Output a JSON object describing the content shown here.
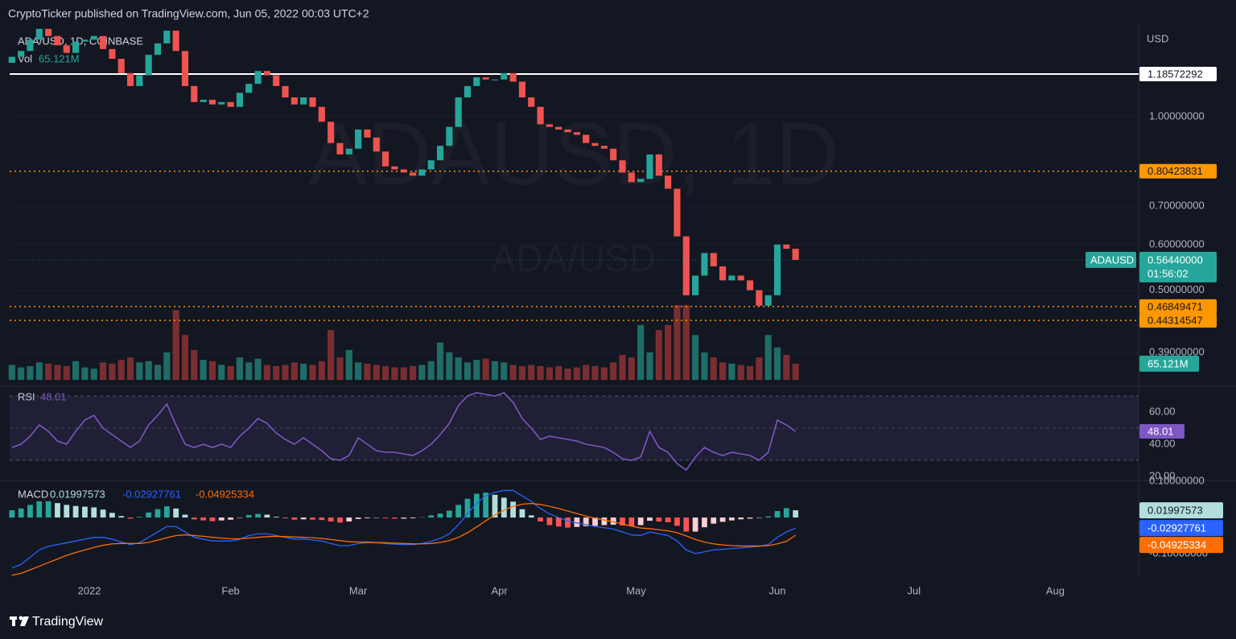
{
  "header": {
    "text": "CryptoTicker published on TradingView.com, Jun 05, 2022 00:03 UTC+2"
  },
  "footer": {
    "brand": "TradingView"
  },
  "chart_data": [
    {
      "type": "candlestick",
      "title": "ADA/USD, 1D, COINBASE",
      "watermark": "ADAUSD, 1D",
      "watermark2": "ADA/USD",
      "symbol": "ADAUSD",
      "unit": "USD",
      "log": true,
      "grid": true,
      "up_color": "#26a69a",
      "down_color": "#ef5350",
      "xlim": [
        -0.5,
        247.3
      ],
      "ylim": [
        0.3495,
        1.424
      ],
      "yticks": [
        {
          "value": 1,
          "label": "1.00000000"
        },
        {
          "value": 0.7,
          "label": "0.70000000"
        },
        {
          "value": 0.6,
          "label": "0.60000000"
        },
        {
          "value": 0.5,
          "label": "0.50000000"
        },
        {
          "value": 0.39,
          "label": "0.39000000"
        }
      ],
      "x": [
        0,
        2,
        4,
        6,
        8,
        10,
        12,
        14,
        16,
        18,
        20,
        22,
        24,
        26,
        28,
        30,
        32,
        34,
        36,
        38,
        40,
        42,
        44,
        46,
        48,
        50,
        52,
        54,
        56,
        58,
        60,
        62,
        64,
        66,
        68,
        70,
        72,
        74,
        76,
        78,
        80,
        82,
        84,
        86,
        88,
        90,
        92,
        94,
        96,
        98,
        100,
        102,
        104,
        106,
        108,
        110,
        112,
        114,
        116,
        118,
        120,
        122,
        124,
        126,
        128,
        130,
        132,
        134,
        136,
        138,
        140,
        142,
        144,
        146,
        148,
        150,
        152,
        154,
        156,
        158,
        160,
        162,
        164,
        166,
        168,
        170,
        172
      ],
      "open": [
        1.24,
        1.27,
        1.3,
        1.36,
        1.42,
        1.38,
        1.33,
        1.29,
        1.35,
        1.36,
        1.38,
        1.31,
        1.26,
        1.19,
        1.13,
        1.18,
        1.28,
        1.34,
        1.41,
        1.3,
        1.13,
        1.06,
        1.07,
        1.05,
        1.06,
        1.04,
        1.1,
        1.14,
        1.2,
        1.18,
        1.13,
        1.08,
        1.05,
        1.08,
        1.04,
        0.98,
        0.9,
        0.86,
        0.88,
        0.95,
        0.92,
        0.87,
        0.82,
        0.81,
        0.8,
        0.79,
        0.81,
        0.84,
        0.89,
        0.96,
        1.08,
        1.13,
        1.17,
        1.16,
        1.16,
        1.19,
        1.15,
        1.08,
        1.04,
        0.97,
        0.96,
        0.95,
        0.94,
        0.93,
        0.9,
        0.89,
        0.88,
        0.84,
        0.8,
        0.77,
        0.78,
        0.86,
        0.79,
        0.75,
        0.62,
        0.49,
        0.53,
        0.58,
        0.55,
        0.52,
        0.53,
        0.52,
        0.5,
        0.47,
        0.49,
        0.6,
        0.59
      ],
      "close": [
        1.27,
        1.3,
        1.36,
        1.42,
        1.38,
        1.33,
        1.29,
        1.35,
        1.36,
        1.38,
        1.31,
        1.26,
        1.19,
        1.13,
        1.18,
        1.28,
        1.34,
        1.41,
        1.3,
        1.13,
        1.06,
        1.07,
        1.05,
        1.06,
        1.04,
        1.1,
        1.14,
        1.2,
        1.18,
        1.13,
        1.08,
        1.05,
        1.08,
        1.04,
        0.98,
        0.9,
        0.86,
        0.88,
        0.95,
        0.92,
        0.87,
        0.82,
        0.81,
        0.8,
        0.79,
        0.81,
        0.84,
        0.89,
        0.96,
        1.08,
        1.13,
        1.17,
        1.16,
        1.16,
        1.19,
        1.15,
        1.08,
        1.04,
        0.97,
        0.96,
        0.95,
        0.94,
        0.93,
        0.9,
        0.89,
        0.88,
        0.84,
        0.8,
        0.77,
        0.78,
        0.86,
        0.79,
        0.75,
        0.62,
        0.49,
        0.53,
        0.58,
        0.55,
        0.52,
        0.53,
        0.52,
        0.5,
        0.47,
        0.49,
        0.6,
        0.59,
        0.5644
      ],
      "last_label": "0.56440000",
      "countdown": "01:56:02",
      "levels": [
        {
          "value": 1.18572292,
          "color": "#ffffff",
          "dash": false
        },
        {
          "value": 0.80423831,
          "color": "#ff9800",
          "dash": true
        },
        {
          "value": 0.46849471,
          "color": "#ff9800",
          "dash": true
        },
        {
          "value": 0.44314547,
          "color": "#ff9800",
          "dash": true
        }
      ],
      "volume": {
        "name": "Vol",
        "ylim": [
          0,
          420
        ],
        "up_color": "#1f6d66",
        "down_color": "#7a2e31",
        "value_label": "65.121M",
        "values": [
          60,
          50,
          55,
          70,
          65,
          60,
          55,
          75,
          50,
          45,
          70,
          65,
          80,
          90,
          70,
          75,
          60,
          110,
          280,
          180,
          120,
          80,
          75,
          60,
          55,
          90,
          70,
          85,
          60,
          55,
          60,
          70,
          65,
          60,
          75,
          200,
          90,
          120,
          70,
          65,
          60,
          55,
          50,
          50,
          55,
          60,
          75,
          150,
          110,
          90,
          70,
          80,
          85,
          75,
          70,
          60,
          55,
          60,
          55,
          50,
          55,
          45,
          50,
          60,
          55,
          50,
          70,
          100,
          90,
          220,
          110,
          200,
          220,
          300,
          300,
          180,
          110,
          90,
          70,
          65,
          60,
          55,
          90,
          180,
          130,
          100,
          65.121
        ]
      }
    },
    {
      "type": "line",
      "title": "RSI",
      "xlim": [
        -0.5,
        247.3
      ],
      "ylim": [
        17.5,
        72.5
      ],
      "band": [
        30,
        70
      ],
      "midline": 50,
      "yticks": [
        {
          "value": 60,
          "label": "60.00"
        },
        {
          "value": 40,
          "label": "40.00"
        },
        {
          "value": 20,
          "label": "20.00"
        }
      ],
      "x": [
        0,
        2,
        4,
        6,
        8,
        10,
        12,
        14,
        16,
        18,
        20,
        22,
        24,
        26,
        28,
        30,
        32,
        34,
        36,
        38,
        40,
        42,
        44,
        46,
        48,
        50,
        52,
        54,
        56,
        58,
        60,
        62,
        64,
        66,
        68,
        70,
        72,
        74,
        76,
        78,
        80,
        82,
        84,
        86,
        88,
        90,
        92,
        94,
        96,
        98,
        100,
        102,
        104,
        106,
        108,
        110,
        112,
        114,
        116,
        118,
        120,
        122,
        124,
        126,
        128,
        130,
        132,
        134,
        136,
        138,
        140,
        142,
        144,
        146,
        148,
        150,
        152,
        154,
        156,
        158,
        160,
        162,
        164,
        166,
        168,
        170,
        172
      ],
      "series": [
        {
          "color": "#7e57c2",
          "values": [
            38,
            40,
            45,
            52,
            48,
            42,
            40,
            48,
            55,
            58,
            50,
            46,
            42,
            38,
            42,
            52,
            58,
            65,
            52,
            40,
            38,
            40,
            38,
            40,
            38,
            45,
            50,
            56,
            53,
            47,
            43,
            40,
            44,
            40,
            36,
            31,
            30,
            33,
            44,
            40,
            36,
            35,
            35,
            34,
            33,
            36,
            40,
            46,
            53,
            64,
            70,
            72,
            71,
            70,
            72,
            66,
            56,
            50,
            43,
            45,
            44,
            43,
            42,
            40,
            39,
            38,
            35,
            31,
            30,
            32,
            48,
            38,
            35,
            28,
            24,
            32,
            38,
            35,
            33,
            35,
            34,
            33,
            30,
            35,
            55,
            52,
            48.01
          ]
        }
      ]
    },
    {
      "type": "macd",
      "title": "MACD",
      "xlim": [
        -0.5,
        247.3
      ],
      "ylim": [
        -0.165,
        0.105
      ],
      "yticks": [
        {
          "value": 0.1,
          "label": "0.10000000"
        },
        {
          "value": -0.1,
          "label": "-0.10000000"
        }
      ],
      "xticks": [
        {
          "value": 17,
          "label": "2022"
        },
        {
          "value": 48,
          "label": "Feb"
        },
        {
          "value": 76,
          "label": "Mar"
        },
        {
          "value": 107,
          "label": "Apr"
        },
        {
          "value": 137,
          "label": "May"
        },
        {
          "value": 168,
          "label": "Jun"
        },
        {
          "value": 198,
          "label": "Jul"
        },
        {
          "value": 229,
          "label": "Aug"
        }
      ],
      "x": [
        0,
        2,
        4,
        6,
        8,
        10,
        12,
        14,
        16,
        18,
        20,
        22,
        24,
        26,
        28,
        30,
        32,
        34,
        36,
        38,
        40,
        42,
        44,
        46,
        48,
        50,
        52,
        54,
        56,
        58,
        60,
        62,
        64,
        66,
        68,
        70,
        72,
        74,
        76,
        78,
        80,
        82,
        84,
        86,
        88,
        90,
        92,
        94,
        96,
        98,
        100,
        102,
        104,
        106,
        108,
        110,
        112,
        114,
        116,
        118,
        120,
        122,
        124,
        126,
        128,
        130,
        132,
        134,
        136,
        138,
        140,
        142,
        144,
        146,
        148,
        150,
        152,
        154,
        156,
        158,
        160,
        162,
        164,
        166,
        168,
        170,
        172
      ],
      "series": [
        {
          "style": "histogram",
          "color": "#b2dfdb",
          "colors": [
            "#26a69a",
            "#b2dfdb",
            "#ff5252",
            "#ffcdd2"
          ],
          "values": [
            0.02,
            0.025,
            0.035,
            0.045,
            0.045,
            0.04,
            0.035,
            0.032,
            0.03,
            0.028,
            0.022,
            0.013,
            0.004,
            -0.003,
            0.002,
            0.014,
            0.023,
            0.031,
            0.025,
            0.008,
            -0.005,
            -0.008,
            -0.01,
            -0.008,
            -0.006,
            -0.001,
            0.007,
            0.01,
            0.008,
            0.002,
            -0.002,
            -0.006,
            -0.005,
            -0.006,
            -0.007,
            -0.011,
            -0.014,
            -0.011,
            -0.004,
            -0.002,
            -0.001,
            -0.002,
            -0.003,
            -0.003,
            -0.002,
            0.001,
            0.006,
            0.011,
            0.019,
            0.035,
            0.052,
            0.066,
            0.069,
            0.063,
            0.055,
            0.044,
            0.023,
            0.006,
            -0.011,
            -0.021,
            -0.025,
            -0.028,
            -0.026,
            -0.024,
            -0.023,
            -0.021,
            -0.02,
            -0.022,
            -0.024,
            -0.021,
            -0.009,
            -0.011,
            -0.013,
            -0.023,
            -0.039,
            -0.039,
            -0.027,
            -0.017,
            -0.012,
            -0.008,
            -0.005,
            -0.003,
            -0.001,
            0.003,
            0.018,
            0.026,
            0.01997573
          ]
        },
        {
          "style": "line",
          "color": "#2962ff",
          "values": [
            -0.14,
            -0.13,
            -0.11,
            -0.09,
            -0.08,
            -0.075,
            -0.07,
            -0.065,
            -0.06,
            -0.055,
            -0.055,
            -0.06,
            -0.068,
            -0.075,
            -0.07,
            -0.055,
            -0.04,
            -0.025,
            -0.025,
            -0.04,
            -0.055,
            -0.06,
            -0.065,
            -0.065,
            -0.065,
            -0.06,
            -0.05,
            -0.045,
            -0.045,
            -0.05,
            -0.055,
            -0.06,
            -0.06,
            -0.062,
            -0.065,
            -0.072,
            -0.078,
            -0.078,
            -0.072,
            -0.07,
            -0.07,
            -0.072,
            -0.074,
            -0.075,
            -0.075,
            -0.072,
            -0.066,
            -0.058,
            -0.045,
            -0.02,
            0.01,
            0.04,
            0.06,
            0.07,
            0.075,
            0.075,
            0.06,
            0.045,
            0.025,
            0.01,
            0.0,
            -0.01,
            -0.015,
            -0.02,
            -0.025,
            -0.028,
            -0.032,
            -0.04,
            -0.048,
            -0.05,
            -0.04,
            -0.045,
            -0.05,
            -0.065,
            -0.09,
            -0.1,
            -0.095,
            -0.09,
            -0.088,
            -0.086,
            -0.084,
            -0.082,
            -0.08,
            -0.075,
            -0.055,
            -0.04,
            -0.02927761
          ]
        },
        {
          "style": "line",
          "color": "#ff6d00",
          "values": [
            -0.16,
            -0.155,
            -0.145,
            -0.135,
            -0.125,
            -0.115,
            -0.105,
            -0.097,
            -0.09,
            -0.083,
            -0.077,
            -0.073,
            -0.072,
            -0.072,
            -0.072,
            -0.069,
            -0.063,
            -0.056,
            -0.05,
            -0.048,
            -0.05,
            -0.052,
            -0.055,
            -0.057,
            -0.059,
            -0.059,
            -0.057,
            -0.055,
            -0.053,
            -0.052,
            -0.053,
            -0.054,
            -0.055,
            -0.056,
            -0.058,
            -0.061,
            -0.064,
            -0.067,
            -0.068,
            -0.068,
            -0.069,
            -0.07,
            -0.071,
            -0.072,
            -0.073,
            -0.073,
            -0.072,
            -0.069,
            -0.064,
            -0.055,
            -0.042,
            -0.026,
            -0.009,
            0.007,
            0.02,
            0.031,
            0.037,
            0.039,
            0.036,
            0.031,
            0.025,
            0.018,
            0.011,
            0.004,
            -0.002,
            -0.007,
            -0.012,
            -0.018,
            -0.024,
            -0.029,
            -0.031,
            -0.034,
            -0.037,
            -0.042,
            -0.051,
            -0.061,
            -0.068,
            -0.073,
            -0.076,
            -0.078,
            -0.079,
            -0.079,
            -0.079,
            -0.078,
            -0.073,
            -0.066,
            -0.04925334
          ]
        }
      ]
    }
  ]
}
